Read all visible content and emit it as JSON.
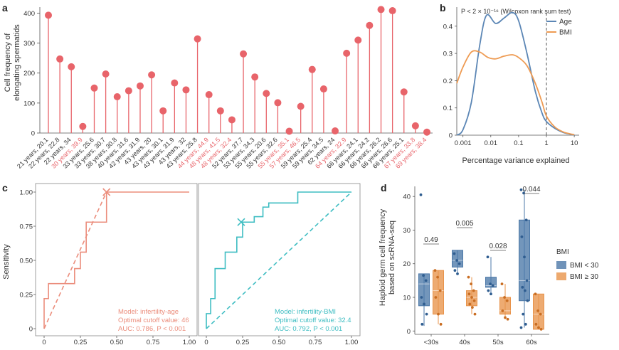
{
  "panels": {
    "a": {
      "letter": "a",
      "ylabel_line1": "Cell frequency of",
      "ylabel_line2": "elongating spermatids",
      "ylim": [
        0,
        420
      ],
      "yticks": [
        "0",
        "100",
        "200",
        "300",
        "400"
      ]
    },
    "b": {
      "letter": "b",
      "stat_text": "P < 2 × 10⁻¹⁶ (Wilcoxon rank sum test)",
      "xlabel": "Percentage variance explained",
      "xticks": [
        "0.001",
        "0.01",
        "0.1",
        "1",
        "10"
      ],
      "yticks": [
        "0",
        "0.1",
        "0.2",
        "0.3",
        "0.4"
      ],
      "legend": [
        "Age",
        "BMI"
      ]
    },
    "c": {
      "letter": "c",
      "ylabel": "Sensitivity",
      "xticks": [
        "0",
        "0.25",
        "0.50",
        "0.75",
        "1.00"
      ],
      "yticks": [
        "0",
        "0.25",
        "0.50",
        "0.75",
        "1.00"
      ],
      "left_note": [
        "Model: infertility-age",
        "Optimal cutoff value: 46",
        "AUC: 0.786, P < 0.001"
      ],
      "right_note": [
        "Model: infertility-BMI",
        "Optimal cutoff value: 32.4",
        "AUC: 0.792, P < 0.001"
      ]
    },
    "d": {
      "letter": "d",
      "ylabel_line1": "Haploid germ cell frequency",
      "ylabel_line2": "based on scRNA-seq",
      "yticks": [
        "0",
        "10",
        "20",
        "30",
        "40"
      ],
      "legend_title": "BMI",
      "legend": [
        "BMI < 30",
        "BMI ≥ 30"
      ]
    }
  },
  "colors": {
    "salmon": "#e8646a",
    "age": "#5b86b5",
    "bmi": "#ee9b53",
    "roc_age": "#eb8d7c",
    "roc_bmi": "#3ebdc2",
    "box_lt30": "#4c78a8",
    "box_ge30": "#e8934a"
  },
  "chart_data": [
    {
      "type": "lollipop",
      "panel": "a",
      "ylabel": "Cell frequency of elongating spermatids",
      "ylim": [
        0,
        420
      ],
      "categories": [
        "21 years, 20.1",
        "22 years, 22.8",
        "22 years, 34",
        "30 years, 39.9",
        "33 years, 25.6",
        "33 years, 30.7",
        "38 years, 30.8",
        "40 years, 31.6",
        "42 years, 31.9",
        "43 years, 20",
        "43 years, 30.1",
        "43 years, 31.9",
        "43 years, 32",
        "43 years, 25.8",
        "44 years, 44.9",
        "48 years, 41.5",
        "48 years, 32.4",
        "52 years, 37.7",
        "53 years, 34.3",
        "55 years, 20.6",
        "55 years, 32.6",
        "55 years, 35.1",
        "57 years, 46.5",
        "59 years, 25.4",
        "59 years, 34.5",
        "62 years, 24",
        "64 years, 32.9",
        "66 years, 24.1",
        "66 years, 24.2",
        "66 years, 26.2",
        "66 years, 26.6",
        "66 years, 25.1",
        "67 years, 33.8",
        "69 years, 38.4"
      ],
      "highlighted": [
        false,
        false,
        false,
        true,
        false,
        false,
        false,
        false,
        false,
        false,
        false,
        false,
        false,
        false,
        true,
        true,
        true,
        false,
        false,
        false,
        false,
        true,
        true,
        false,
        false,
        false,
        true,
        false,
        false,
        false,
        false,
        false,
        true,
        true
      ],
      "values": [
        393,
        247,
        221,
        22,
        150,
        197,
        121,
        141,
        157,
        194,
        74,
        167,
        144,
        314,
        128,
        74,
        44,
        264,
        187,
        132,
        101,
        6,
        89,
        212,
        147,
        7,
        266,
        310,
        359,
        412,
        408,
        137,
        24,
        3
      ]
    },
    {
      "type": "line",
      "panel": "b",
      "xlabel": "Percentage variance explained",
      "xscale": "log",
      "xlim": [
        0.0006,
        15
      ],
      "ylim": [
        0,
        0.47
      ],
      "annotation": "P < 2 × 10⁻¹⁶ (Wilcoxon rank sum test)",
      "vline_x": 1,
      "series": [
        {
          "name": "Age",
          "x": [
            0.0006,
            0.001,
            0.002,
            0.004,
            0.007,
            0.015,
            0.03,
            0.06,
            0.1,
            0.2,
            0.4,
            0.7,
            1,
            2,
            4,
            7,
            10
          ],
          "y": [
            0.0,
            0.02,
            0.12,
            0.33,
            0.44,
            0.41,
            0.43,
            0.45,
            0.42,
            0.3,
            0.16,
            0.08,
            0.05,
            0.025,
            0.01,
            0.004,
            0.001
          ]
        },
        {
          "name": "BMI",
          "x": [
            0.0006,
            0.001,
            0.002,
            0.004,
            0.008,
            0.015,
            0.03,
            0.06,
            0.1,
            0.2,
            0.4,
            0.7,
            1,
            2,
            4,
            7,
            10
          ],
          "y": [
            0.19,
            0.25,
            0.305,
            0.305,
            0.285,
            0.28,
            0.29,
            0.295,
            0.285,
            0.255,
            0.19,
            0.12,
            0.07,
            0.03,
            0.012,
            0.005,
            0.002
          ]
        }
      ]
    },
    {
      "type": "line",
      "panel": "c-left",
      "xlim": [
        0,
        1
      ],
      "ylim": [
        0,
        1
      ],
      "note": "Model: infertility-age; Optimal cutoff value: 46; AUC: 0.786, P < 0.001",
      "series": [
        {
          "name": "ROC",
          "x": [
            0,
            0,
            0.03,
            0.03,
            0.21,
            0.21,
            0.25,
            0.25,
            0.29,
            0.29,
            0.43,
            0.43,
            1
          ],
          "y": [
            0,
            0.22,
            0.22,
            0.33,
            0.33,
            0.44,
            0.44,
            0.56,
            0.56,
            0.78,
            0.78,
            1,
            1
          ]
        },
        {
          "name": "chance",
          "x": [
            0,
            0.43
          ],
          "y": [
            0,
            1
          ]
        }
      ],
      "optimal_point": [
        0.43,
        1
      ]
    },
    {
      "type": "line",
      "panel": "c-right",
      "xlim": [
        0,
        1
      ],
      "ylim": [
        0,
        1
      ],
      "note": "Model: infertility-BMI; Optimal cutoff value: 32.4; AUC: 0.792, P < 0.001",
      "series": [
        {
          "name": "ROC",
          "x": [
            0,
            0,
            0.03,
            0.03,
            0.06,
            0.06,
            0.13,
            0.13,
            0.21,
            0.21,
            0.25,
            0.25,
            0.33,
            0.33,
            0.39,
            0.39,
            0.43,
            0.43,
            0.63,
            0.63,
            1
          ],
          "y": [
            0,
            0.11,
            0.11,
            0.22,
            0.22,
            0.44,
            0.44,
            0.56,
            0.56,
            0.67,
            0.67,
            0.78,
            0.78,
            0.82,
            0.82,
            0.89,
            0.89,
            0.92,
            0.92,
            1,
            1
          ]
        },
        {
          "name": "chance",
          "x": [
            0,
            1
          ],
          "y": [
            0,
            1
          ]
        }
      ],
      "optimal_point": [
        0.24,
        0.78
      ]
    },
    {
      "type": "box",
      "panel": "d",
      "ylabel": "Haploid germ cell frequency based on scRNA-seq",
      "ylim": [
        -1,
        43
      ],
      "categories": [
        "<30s",
        "40s",
        "50s",
        "60s"
      ],
      "pvalues": [
        "0.49",
        "0.005",
        "0.028",
        "0.044"
      ],
      "series": [
        {
          "name": "BMI < 30",
          "boxes": [
            {
              "min": 1.5,
              "q1": 7.5,
              "median": 14,
              "q3": 17,
              "max": 17,
              "points": [
                40.5,
                16.5,
                15,
                10,
                8,
                5,
                2
              ]
            },
            {
              "min": 17,
              "q1": 19,
              "median": 21,
              "q3": 24,
              "max": 24,
              "points": [
                23,
                21,
                20,
                18,
                17
              ]
            },
            {
              "min": 11,
              "q1": 13,
              "median": 13.5,
              "q3": 16,
              "max": 22,
              "points": [
                22,
                14,
                13.5,
                12,
                11
              ]
            },
            {
              "min": 1,
              "q1": 9,
              "median": 15,
              "q3": 33,
              "max": 42,
              "points": [
                42,
                41,
                33,
                28,
                22,
                15,
                13,
                12,
                9,
                5,
                2,
                1
              ]
            }
          ]
        },
        {
          "name": "BMI ≥ 30",
          "boxes": [
            {
              "min": 2,
              "q1": 5,
              "median": 12,
              "q3": 18,
              "max": 18,
              "points": [
                18,
                16,
                12,
                10,
                5,
                2
              ]
            },
            {
              "min": 5,
              "q1": 7.5,
              "median": 10,
              "q3": 12,
              "max": 16,
              "points": [
                16,
                14,
                12,
                11,
                10,
                9,
                8,
                7,
                5
              ]
            },
            {
              "min": 3.5,
              "q1": 5,
              "median": 6,
              "q3": 10,
              "max": 14,
              "points": [
                14,
                10,
                9,
                6,
                4,
                3.5
              ]
            },
            {
              "min": 0.5,
              "q1": 0.5,
              "median": 5,
              "q3": 11,
              "max": 11,
              "points": [
                11,
                6,
                5,
                2,
                1,
                0.5
              ]
            }
          ]
        }
      ]
    }
  ]
}
